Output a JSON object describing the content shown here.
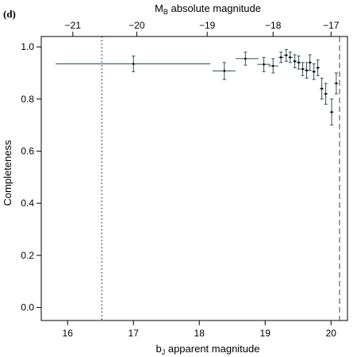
{
  "chart_data": {
    "type": "scatter",
    "panel_label": "(d)",
    "xlabel_main": "b",
    "xlabel_sub": "J",
    "xlabel_rest": " apparent magnitude",
    "ylabel": "Completeness",
    "xlabel_top_main": "M",
    "xlabel_top_sub": "B",
    "xlabel_top_rest": " absolute magnitude",
    "xlim": [
      15.6,
      20.25
    ],
    "ylim": [
      -0.05,
      1.04
    ],
    "x_ticks": [
      "16",
      "17",
      "18",
      "19",
      "20"
    ],
    "y_ticks": [
      "0.0",
      "0.2",
      "0.4",
      "0.6",
      "0.8",
      "1.0"
    ],
    "top_ticks": [
      {
        "label": "−21",
        "x": 16.08
      },
      {
        "label": "−20",
        "x": 17.05
      },
      {
        "label": "−19",
        "x": 18.12
      },
      {
        "label": "−18",
        "x": 19.12
      },
      {
        "label": "−17",
        "x": 20.0
      }
    ],
    "reference_lines": [
      {
        "style": "dotted",
        "color": "#3333cc",
        "x": 16.52
      },
      {
        "style": "dashed",
        "color": "#777777",
        "x": 20.13
      }
    ],
    "points": [
      {
        "x": 17.0,
        "y": 0.935,
        "xlo": 15.82,
        "xhi": 18.17,
        "ylo": 0.905,
        "yhi": 0.965
      },
      {
        "x": 18.38,
        "y": 0.908,
        "xlo": 18.2,
        "xhi": 18.55,
        "ylo": 0.875,
        "yhi": 0.94
      },
      {
        "x": 18.7,
        "y": 0.955,
        "xlo": 18.55,
        "xhi": 18.9,
        "ylo": 0.93,
        "yhi": 0.98
      },
      {
        "x": 18.98,
        "y": 0.933,
        "xlo": 18.88,
        "xhi": 19.08,
        "ylo": 0.905,
        "yhi": 0.96
      },
      {
        "x": 19.12,
        "y": 0.927,
        "xlo": 19.05,
        "xhi": 19.2,
        "ylo": 0.9,
        "yhi": 0.955
      },
      {
        "x": 19.24,
        "y": 0.96,
        "xlo": 19.2,
        "xhi": 19.28,
        "ylo": 0.94,
        "yhi": 0.98
      },
      {
        "x": 19.32,
        "y": 0.968,
        "xlo": 19.28,
        "xhi": 19.35,
        "ylo": 0.945,
        "yhi": 0.99
      },
      {
        "x": 19.38,
        "y": 0.96,
        "xlo": 19.35,
        "xhi": 19.42,
        "ylo": 0.94,
        "yhi": 0.98
      },
      {
        "x": 19.45,
        "y": 0.945,
        "xlo": 19.42,
        "xhi": 19.48,
        "ylo": 0.92,
        "yhi": 0.97
      },
      {
        "x": 19.51,
        "y": 0.94,
        "xlo": 19.48,
        "xhi": 19.54,
        "ylo": 0.915,
        "yhi": 0.965
      },
      {
        "x": 19.57,
        "y": 0.915,
        "xlo": 19.54,
        "xhi": 19.6,
        "ylo": 0.89,
        "yhi": 0.94
      },
      {
        "x": 19.63,
        "y": 0.91,
        "xlo": 19.6,
        "xhi": 19.66,
        "ylo": 0.88,
        "yhi": 0.94
      },
      {
        "x": 19.68,
        "y": 0.94,
        "xlo": 19.66,
        "xhi": 19.71,
        "ylo": 0.91,
        "yhi": 0.97
      },
      {
        "x": 19.74,
        "y": 0.905,
        "xlo": 19.71,
        "xhi": 19.77,
        "ylo": 0.875,
        "yhi": 0.935
      },
      {
        "x": 19.8,
        "y": 0.92,
        "xlo": 19.77,
        "xhi": 19.83,
        "ylo": 0.89,
        "yhi": 0.95
      },
      {
        "x": 19.86,
        "y": 0.84,
        "xlo": 19.83,
        "xhi": 19.89,
        "ylo": 0.8,
        "yhi": 0.88
      },
      {
        "x": 19.92,
        "y": 0.82,
        "xlo": 19.89,
        "xhi": 19.95,
        "ylo": 0.78,
        "yhi": 0.86
      },
      {
        "x": 20.01,
        "y": 0.75,
        "xlo": 19.98,
        "xhi": 20.04,
        "ylo": 0.7,
        "yhi": 0.8
      },
      {
        "x": 20.08,
        "y": 0.86,
        "xlo": 20.05,
        "xhi": 20.11,
        "ylo": 0.82,
        "yhi": 0.9
      }
    ]
  }
}
